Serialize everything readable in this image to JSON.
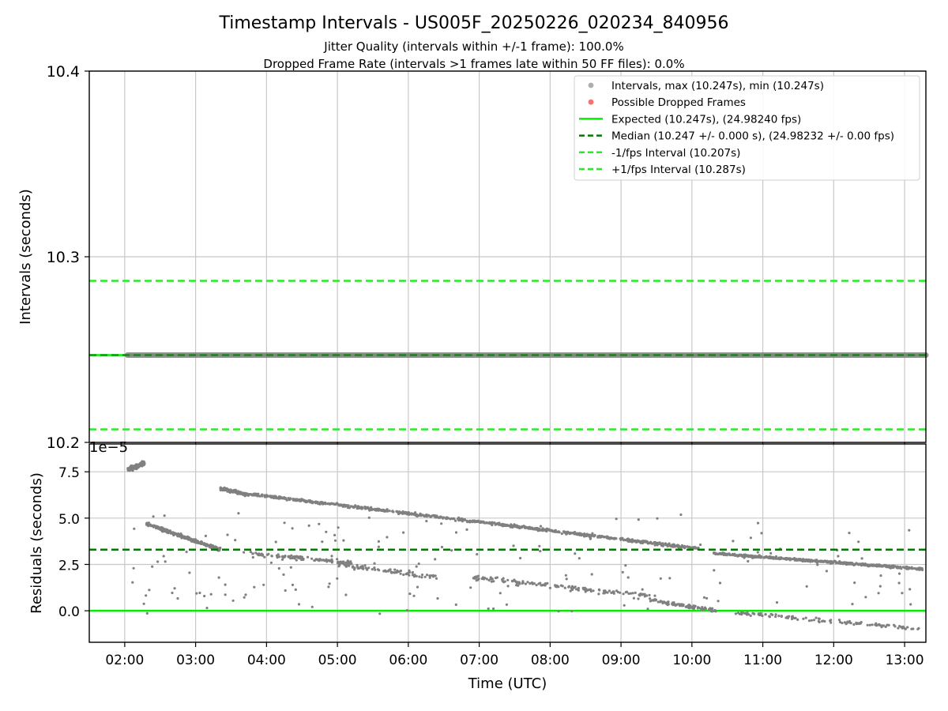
{
  "title": "Timestamp Intervals - US005F_20250226_020234_840956",
  "subtitle_line1": "Jitter Quality (intervals within +/-1 frame): 100.0%",
  "subtitle_line2": "Dropped Frame Rate (intervals >1 frames late within 50 FF files): 0.0%",
  "colors": {
    "points": "#808080",
    "dropped": "#ff0000",
    "expected": "#00ee00",
    "median": "#007a00",
    "bound": "#22ee22",
    "grid": "#c8c8c8"
  },
  "chart_data": [
    {
      "type": "scatter",
      "ylabel": "Intervals (seconds)",
      "ylim": [
        10.2,
        10.4
      ],
      "yticks": [
        "10.2",
        "10.3",
        "10.4"
      ],
      "xlim_hours": [
        1.5,
        13.3
      ],
      "grid": true,
      "legend_position": "upper-right",
      "legend": [
        {
          "label": "Intervals, max (10.247s), min (10.247s)",
          "kind": "dot",
          "color": "#a0a0a0"
        },
        {
          "label": "Possible Dropped Frames",
          "kind": "dot",
          "color": "#ff5555"
        },
        {
          "label": "Expected (10.247s), (24.98240 fps)",
          "kind": "line",
          "color": "#00ee00"
        },
        {
          "label": "Median (10.247 +/- 0.000 s), (24.98232 +/- 0.00 fps)",
          "kind": "dash",
          "color": "#007a00"
        },
        {
          "label": "-1/fps Interval (10.207s)",
          "kind": "dash",
          "color": "#22ee22"
        },
        {
          "label": "+1/fps Interval (10.287s)",
          "kind": "dash",
          "color": "#22ee22"
        }
      ],
      "series": {
        "intervals": {
          "x_start": 2.04,
          "x_end": 13.3,
          "y": 10.247
        },
        "expected": 10.247,
        "median": 10.247,
        "minus_one_frame": 10.207,
        "plus_one_frame": 10.287
      }
    },
    {
      "type": "scatter",
      "ylabel": "Residuals (seconds)",
      "xlabel": "Time (UTC)",
      "offset_text": "1e−5",
      "ylim": [
        -1.7,
        9.0
      ],
      "yticks": [
        {
          "v": -0.0,
          "label": "0.0"
        },
        {
          "v": 2.5,
          "label": "2.5"
        },
        {
          "v": 5.0,
          "label": "5.0"
        },
        {
          "v": 7.5,
          "label": "7.5"
        }
      ],
      "xticks": [
        {
          "v": 2,
          "label": "02:00"
        },
        {
          "v": 3,
          "label": "03:00"
        },
        {
          "v": 4,
          "label": "04:00"
        },
        {
          "v": 5,
          "label": "05:00"
        },
        {
          "v": 6,
          "label": "06:00"
        },
        {
          "v": 7,
          "label": "07:00"
        },
        {
          "v": 8,
          "label": "08:00"
        },
        {
          "v": 9,
          "label": "09:00"
        },
        {
          "v": 10,
          "label": "10:00"
        },
        {
          "v": 11,
          "label": "11:00"
        },
        {
          "v": 12,
          "label": "12:00"
        },
        {
          "v": 13,
          "label": "13:00"
        }
      ],
      "expected_residual": 0.0,
      "median_residual": 3.3,
      "clusters": [
        {
          "name": "early-high",
          "x0": 2.04,
          "x1": 2.28,
          "y0": 7.6,
          "y1": 7.95,
          "spread": 0.25,
          "n": 110
        },
        {
          "name": "band-a",
          "x0": 2.3,
          "x1": 3.35,
          "y0": 4.7,
          "y1": 3.3,
          "spread": 0.15,
          "n": 320
        },
        {
          "name": "band-b",
          "x0": 3.35,
          "x1": 3.75,
          "y0": 6.6,
          "y1": 6.25,
          "spread": 0.15,
          "n": 130
        },
        {
          "name": "band-c",
          "x0": 3.75,
          "x1": 10.1,
          "y0": 6.3,
          "y1": 3.35,
          "spread": 0.12,
          "n": 900
        },
        {
          "name": "band-d",
          "x0": 10.3,
          "x1": 13.25,
          "y0": 3.1,
          "y1": 2.25,
          "spread": 0.1,
          "n": 520
        },
        {
          "name": "low-mid",
          "x0": 3.65,
          "x1": 5.2,
          "y0": 3.1,
          "y1": 2.6,
          "spread": 0.2,
          "n": 110
        },
        {
          "name": "low-a",
          "x0": 5.0,
          "x1": 6.4,
          "y0": 2.5,
          "y1": 1.8,
          "spread": 0.2,
          "n": 80
        },
        {
          "name": "low-b",
          "x0": 6.9,
          "x1": 9.4,
          "y0": 1.8,
          "y1": 0.8,
          "spread": 0.2,
          "n": 140
        },
        {
          "name": "low-c",
          "x0": 9.4,
          "x1": 10.35,
          "y0": 0.6,
          "y1": 0.0,
          "spread": 0.15,
          "n": 90
        },
        {
          "name": "low-d",
          "x0": 10.6,
          "x1": 13.28,
          "y0": -0.1,
          "y1": -1.0,
          "spread": 0.15,
          "n": 110
        },
        {
          "name": "sparse",
          "x0": 2.1,
          "x1": 13.2,
          "y0": 6.0,
          "y1": 0.5,
          "spread": 2.0,
          "n": 170
        }
      ]
    }
  ]
}
